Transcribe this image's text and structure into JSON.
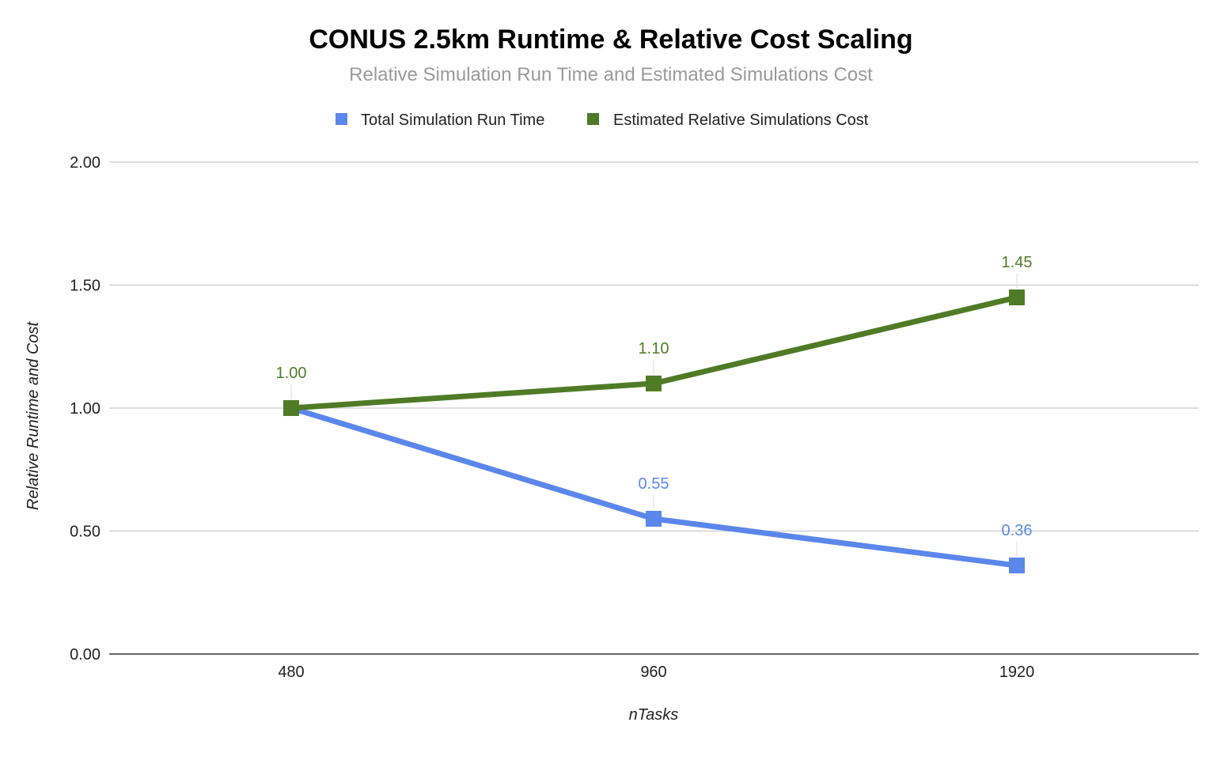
{
  "chart_data": {
    "type": "line",
    "title": "CONUS 2.5km Runtime & Relative Cost Scaling",
    "subtitle": "Relative Simulation Run Time and Estimated Simulations Cost",
    "xlabel": "nTasks",
    "ylabel": "Relative Runtime and Cost",
    "categories": [
      "480",
      "960",
      "1920"
    ],
    "ylim": [
      0,
      2
    ],
    "yticks": [
      0,
      0.5,
      1.0,
      1.5,
      2.0
    ],
    "ytick_labels": [
      "0.00",
      "0.50",
      "1.00",
      "1.50",
      "2.00"
    ],
    "grid": true,
    "legend_position": "top",
    "series": [
      {
        "name": "Total Simulation Run Time",
        "color": "#5b87eb",
        "values": [
          1.0,
          0.55,
          0.36
        ],
        "labels": [
          "",
          "0.55",
          "0.36"
        ]
      },
      {
        "name": "Estimated Relative Simulations Cost",
        "color": "#4f7b26",
        "values": [
          1.0,
          1.1,
          1.45
        ],
        "labels": [
          "1.00",
          "1.10",
          "1.45"
        ]
      }
    ]
  }
}
